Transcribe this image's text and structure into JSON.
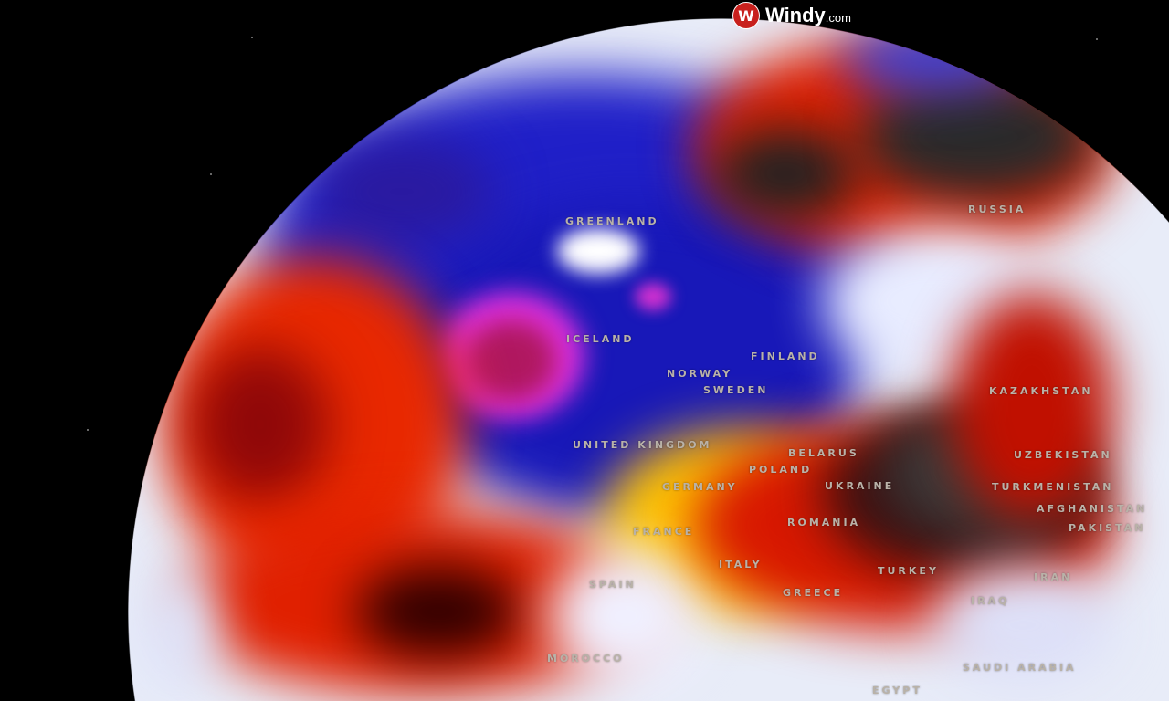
{
  "brand": {
    "name": "Windy",
    "suffix": ".com",
    "icon": "windy-logo-icon",
    "color": "#c8201d"
  },
  "labels": {
    "greenland": "GREENLAND",
    "russia": "RUSSIA",
    "iceland": "ICELAND",
    "finland": "FINLAND",
    "norway": "NORWAY",
    "sweden": "SWEDEN",
    "united_kingdom": "UNITED KINGDOM",
    "belarus": "BELARUS",
    "poland": "POLAND",
    "germany": "GERMANY",
    "ukraine": "UKRAINE",
    "kazakhstan": "KAZAKHSTAN",
    "uzbekistan": "UZBEKISTAN",
    "turkmenistan": "TURKMENISTAN",
    "afghanistan": "AFGHANISTAN",
    "pakistan": "PAKISTAN",
    "france": "FRANCE",
    "romania": "ROMANIA",
    "spain": "SPAIN",
    "italy": "ITALY",
    "greece": "GREECE",
    "turkey": "TURKEY",
    "iraq": "IRAQ",
    "iran": "IRAN",
    "saudi_arabia": "SAUDI ARABIA",
    "morocco": "MOROCCO",
    "egypt": "EGYPT"
  },
  "colors": {
    "cold": "#1a1ad0",
    "very_cold": "#e040e0",
    "hot": "#e82000",
    "warm": "#ffd400",
    "extreme": "#2a2a2a",
    "neutral": "#e8ecf8"
  }
}
